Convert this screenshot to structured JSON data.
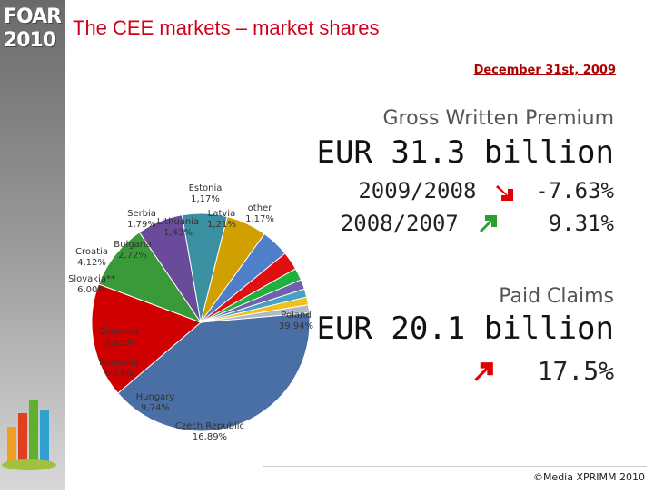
{
  "logo": {
    "line1": "FOAR",
    "line2": "2010"
  },
  "title": "The CEE markets – market shares",
  "date": "December 31st, 2009",
  "gwp": {
    "label": "Gross Written Premium",
    "value": "EUR 31.3 billion",
    "rows": [
      {
        "period": "2009/2008",
        "change": "-7.63%",
        "direction": "down",
        "color": "#e00000",
        "icon": "arrow-down-right-icon"
      },
      {
        "period": "2008/2007",
        "change": "9.31%",
        "direction": "up",
        "color": "#2e9e2e",
        "icon": "arrow-up-right-icon"
      }
    ]
  },
  "paid_claims": {
    "label": "Paid Claims",
    "value": "EUR 20.1 billion",
    "change": "17.5%",
    "direction": "up",
    "color": "#e00000",
    "icon": "arrow-up-right-icon"
  },
  "copyright": "©Media XPRIMM 2010",
  "chart_data": {
    "type": "pie",
    "slices": [
      {
        "label": "Poland",
        "value_label": "39,94%",
        "value": 39.94,
        "color": "#4a6fa5"
      },
      {
        "label": "Czech Republic",
        "value_label": "16,89%",
        "value": 16.89,
        "color": "#d00000"
      },
      {
        "label": "Hungary",
        "value_label": "9,74%",
        "value": 9.74,
        "color": "#3a9a3a"
      },
      {
        "label": "Romania",
        "value_label": "6,74%",
        "value": 6.74,
        "color": "#6a4a9a"
      },
      {
        "label": "Slovenia",
        "value_label": "6,63%",
        "value": 6.63,
        "color": "#3a8fa0"
      },
      {
        "label": "Slovakia**",
        "value_label": "6,00%",
        "value": 6.0,
        "color": "#d0a000"
      },
      {
        "label": "Croatia",
        "value_label": "4,12%",
        "value": 4.12,
        "color": "#4f7fc8"
      },
      {
        "label": "Bulgaria",
        "value_label": "2,72%",
        "value": 2.72,
        "color": "#e01010"
      },
      {
        "label": "Serbia",
        "value_label": "1,79%",
        "value": 1.79,
        "color": "#20b040"
      },
      {
        "label": "Lithuania",
        "value_label": "1,43%",
        "value": 1.43,
        "color": "#7060b0"
      },
      {
        "label": "Latvia",
        "value_label": "1,21%",
        "value": 1.21,
        "color": "#4aa0c0"
      },
      {
        "label": "Estonia",
        "value_label": "1,17%",
        "value": 1.17,
        "color": "#f0c020"
      },
      {
        "label": "other",
        "value_label": "1,17%",
        "value": 1.17,
        "color": "#b0b8c8"
      }
    ]
  }
}
